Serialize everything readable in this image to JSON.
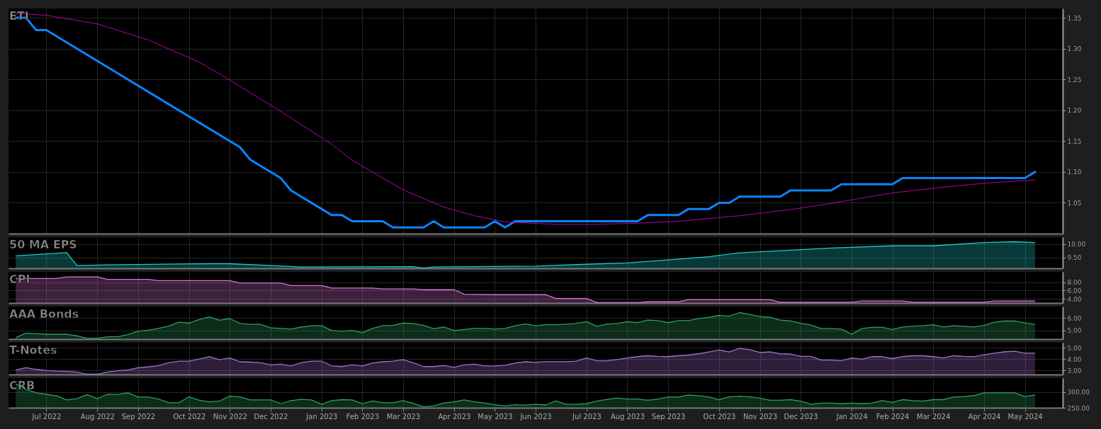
{
  "chart_data": [
    {
      "type": "line",
      "title": "ETI",
      "xlim": [
        "2022-06-05",
        "2024-05-29"
      ],
      "xticks": [
        {
          "value": "2022-07-01",
          "label": null
        },
        {
          "value": "2022-08-05",
          "label": null
        },
        {
          "value": "2022-09-02",
          "label": null
        },
        {
          "value": "2022-10-07",
          "label": null
        },
        {
          "value": "2022-11-04",
          "label": null
        },
        {
          "value": "2022-12-02",
          "label": null
        },
        {
          "value": "2023-01-06",
          "label": null
        },
        {
          "value": "2023-02-03",
          "label": null
        },
        {
          "value": "2023-03-03",
          "label": null
        },
        {
          "value": "2023-04-07",
          "label": null
        },
        {
          "value": "2023-05-05",
          "label": null
        },
        {
          "value": "2023-06-02",
          "label": null
        },
        {
          "value": "2023-07-07",
          "label": null
        },
        {
          "value": "2023-08-04",
          "label": null
        },
        {
          "value": "2023-09-01",
          "label": null
        },
        {
          "value": "2023-10-06",
          "label": null
        },
        {
          "value": "2023-11-03",
          "label": null
        },
        {
          "value": "2023-12-01",
          "label": null
        },
        {
          "value": "2024-01-05",
          "label": null
        },
        {
          "value": "2024-02-02",
          "label": null
        },
        {
          "value": "2024-03-01",
          "label": null
        },
        {
          "value": "2024-04-05",
          "label": null
        },
        {
          "value": "2024-05-03",
          "label": null
        }
      ],
      "ylim": [
        1.0,
        1.365
      ],
      "yticks": [
        1.05,
        {
          "value": 1.1,
          "label": "1.10"
        },
        1.15,
        {
          "value": 1.2,
          "label": "1.20"
        },
        1.25,
        {
          "value": 1.3,
          "label": "1.30"
        },
        1.35
      ],
      "grid": true,
      "tick_labels": "y",
      "series": [
        {
          "color": "#0a84ff",
          "x": [
            "2022-06-10",
            "2022-06-17",
            "2022-06-24",
            "2022-07-01",
            "2022-11-11",
            "2022-11-18",
            "2022-12-09",
            "2022-12-16",
            "2023-01-13",
            "2023-01-20",
            "2023-01-27",
            "2023-02-17",
            "2023-02-24",
            "2023-03-17",
            "2023-03-24",
            "2023-03-31",
            "2023-04-28",
            "2023-05-05",
            "2023-05-12",
            "2023-05-19",
            "2023-08-11",
            "2023-08-18",
            "2023-09-08",
            "2023-09-15",
            "2023-09-29",
            "2023-10-06",
            "2023-10-13",
            "2023-10-20",
            "2023-11-17",
            "2023-11-24",
            "2023-12-22",
            "2023-12-29",
            "2024-02-02",
            "2024-02-09",
            "2024-05-03",
            "2024-05-10"
          ],
          "values": [
            1.35,
            1.35,
            1.33,
            1.33,
            1.14,
            1.12,
            1.09,
            1.07,
            1.03,
            1.03,
            1.02,
            1.02,
            1.01,
            1.01,
            1.02,
            1.01,
            1.01,
            1.02,
            1.01,
            1.02,
            1.02,
            1.03,
            1.03,
            1.04,
            1.04,
            1.05,
            1.05,
            1.06,
            1.06,
            1.07,
            1.07,
            1.08,
            1.08,
            1.09,
            1.09,
            1.1
          ]
        },
        {
          "color": "#b000b0",
          "x": [
            "2022-06-10",
            "2022-07-01",
            "2022-08-05",
            "2022-09-09",
            "2022-10-14",
            "2022-11-04",
            "2022-12-09",
            "2023-01-13",
            "2023-01-27",
            "2023-03-03",
            "2023-03-31",
            "2023-04-21",
            "2023-05-12",
            "2023-06-16",
            "2023-07-14",
            "2023-08-11",
            "2023-09-08",
            "2023-10-20",
            "2023-11-24",
            "2023-12-22",
            "2024-02-02",
            "2024-03-15",
            "2024-04-12",
            "2024-05-10"
          ],
          "values": [
            1.357,
            1.354,
            1.34,
            1.314,
            1.278,
            1.249,
            1.198,
            1.145,
            1.119,
            1.071,
            1.043,
            1.029,
            1.019,
            1.015,
            1.015,
            1.017,
            1.02,
            1.029,
            1.039,
            1.049,
            1.066,
            1.077,
            1.083,
            1.087
          ]
        }
      ]
    },
    {
      "type": "area",
      "title": "50 MA EPS",
      "xlim": [
        "2022-06-05",
        "2024-05-29"
      ],
      "xticks": [
        {
          "value": "2022-07-01",
          "label": null
        },
        {
          "value": "2022-08-05",
          "label": null
        },
        {
          "value": "2022-09-02",
          "label": null
        },
        {
          "value": "2022-10-07",
          "label": null
        },
        {
          "value": "2022-11-04",
          "label": null
        },
        {
          "value": "2022-12-02",
          "label": null
        },
        {
          "value": "2023-01-06",
          "label": null
        },
        {
          "value": "2023-02-03",
          "label": null
        },
        {
          "value": "2023-03-03",
          "label": null
        },
        {
          "value": "2023-04-07",
          "label": null
        },
        {
          "value": "2023-05-05",
          "label": null
        },
        {
          "value": "2023-06-02",
          "label": null
        },
        {
          "value": "2023-07-07",
          "label": null
        },
        {
          "value": "2023-08-04",
          "label": null
        },
        {
          "value": "2023-09-01",
          "label": null
        },
        {
          "value": "2023-10-06",
          "label": null
        },
        {
          "value": "2023-11-03",
          "label": null
        },
        {
          "value": "2023-12-01",
          "label": null
        },
        {
          "value": "2024-01-05",
          "label": null
        },
        {
          "value": "2024-02-02",
          "label": null
        },
        {
          "value": "2024-03-01",
          "label": null
        },
        {
          "value": "2024-04-05",
          "label": null
        },
        {
          "value": "2024-05-03",
          "label": null
        }
      ],
      "ylim": [
        9.1,
        10.25
      ],
      "yticks": [
        {
          "value": 9.5,
          "label": "9.50"
        },
        {
          "value": 10,
          "label": "10.00"
        }
      ],
      "grid": true,
      "tick_labels": "y",
      "series": [
        {
          "color": "#1fc8c8",
          "x": [
            "2022-06-10",
            "2022-07-15",
            "2022-07-22",
            "2022-08-12",
            "2022-10-21",
            "2022-11-04",
            "2022-12-23",
            "2023-03-10",
            "2023-03-17",
            "2023-03-24",
            "2023-06-02",
            "2023-07-07",
            "2023-08-04",
            "2023-09-01",
            "2023-09-29",
            "2023-10-20",
            "2023-11-24",
            "2023-12-22",
            "2024-02-02",
            "2024-03-01",
            "2024-04-05",
            "2024-04-26",
            "2024-05-10"
          ],
          "values": [
            9.56,
            9.68,
            9.2,
            9.23,
            9.27,
            9.27,
            9.15,
            9.16,
            9.11,
            9.15,
            9.18,
            9.25,
            9.3,
            9.41,
            9.53,
            9.67,
            9.77,
            9.85,
            9.93,
            9.93,
            10.05,
            10.08,
            10.05
          ]
        }
      ]
    },
    {
      "type": "area",
      "title": "CPI",
      "xlim": [
        "2022-06-05",
        "2024-05-29"
      ],
      "xticks": [
        {
          "value": "2022-07-01",
          "label": null
        },
        {
          "value": "2022-08-05",
          "label": null
        },
        {
          "value": "2022-09-02",
          "label": null
        },
        {
          "value": "2022-10-07",
          "label": null
        },
        {
          "value": "2022-11-04",
          "label": null
        },
        {
          "value": "2022-12-02",
          "label": null
        },
        {
          "value": "2023-01-06",
          "label": null
        },
        {
          "value": "2023-02-03",
          "label": null
        },
        {
          "value": "2023-03-03",
          "label": null
        },
        {
          "value": "2023-04-07",
          "label": null
        },
        {
          "value": "2023-05-05",
          "label": null
        },
        {
          "value": "2023-06-02",
          "label": null
        },
        {
          "value": "2023-07-07",
          "label": null
        },
        {
          "value": "2023-08-04",
          "label": null
        },
        {
          "value": "2023-09-01",
          "label": null
        },
        {
          "value": "2023-10-06",
          "label": null
        },
        {
          "value": "2023-11-03",
          "label": null
        },
        {
          "value": "2023-12-01",
          "label": null
        },
        {
          "value": "2024-01-05",
          "label": null
        },
        {
          "value": "2024-02-02",
          "label": null
        },
        {
          "value": "2024-03-01",
          "label": null
        },
        {
          "value": "2024-04-05",
          "label": null
        },
        {
          "value": "2024-05-03",
          "label": null
        }
      ],
      "ylim": [
        3.0,
        10.5
      ],
      "yticks": [
        {
          "value": 4,
          "label": "4.00"
        },
        {
          "value": 6,
          "label": "6.00"
        },
        {
          "value": 8,
          "label": "8.00"
        }
      ],
      "grid": true,
      "tick_labels": "y",
      "series": [
        {
          "color": "#d873d8",
          "x": [
            "2022-06-10",
            "2022-07-08",
            "2022-07-15",
            "2022-08-05",
            "2022-08-12",
            "2022-09-09",
            "2022-09-16",
            "2022-11-04",
            "2022-11-11",
            "2022-12-09",
            "2022-12-16",
            "2023-01-06",
            "2023-01-13",
            "2023-02-10",
            "2023-02-17",
            "2023-03-10",
            "2023-03-17",
            "2023-04-07",
            "2023-04-14",
            "2023-05-05",
            "2023-06-09",
            "2023-06-16",
            "2023-07-07",
            "2023-07-14",
            "2023-08-11",
            "2023-08-18",
            "2023-09-08",
            "2023-09-15",
            "2023-11-10",
            "2023-11-17",
            "2024-01-05",
            "2024-01-12",
            "2024-02-09",
            "2024-02-16",
            "2024-04-05",
            "2024-04-12",
            "2024-05-10"
          ],
          "values": [
            8.9,
            8.9,
            9.3,
            9.3,
            8.7,
            8.7,
            8.4,
            8.4,
            7.8,
            7.8,
            7.2,
            7.2,
            6.6,
            6.6,
            6.4,
            6.4,
            6.2,
            6.2,
            5.1,
            5.0,
            5.0,
            4.1,
            4.1,
            3.1,
            3.1,
            3.3,
            3.3,
            3.8,
            3.8,
            3.2,
            3.2,
            3.5,
            3.5,
            3.2,
            3.2,
            3.5,
            3.5
          ]
        }
      ]
    },
    {
      "type": "area",
      "title": "AAA Bonds",
      "xlim": [
        "2022-06-05",
        "2024-05-29"
      ],
      "xticks": [
        {
          "value": "2022-07-01",
          "label": null
        },
        {
          "value": "2022-08-05",
          "label": null
        },
        {
          "value": "2022-09-02",
          "label": null
        },
        {
          "value": "2022-10-07",
          "label": null
        },
        {
          "value": "2022-11-04",
          "label": null
        },
        {
          "value": "2022-12-02",
          "label": null
        },
        {
          "value": "2023-01-06",
          "label": null
        },
        {
          "value": "2023-02-03",
          "label": null
        },
        {
          "value": "2023-03-03",
          "label": null
        },
        {
          "value": "2023-04-07",
          "label": null
        },
        {
          "value": "2023-05-05",
          "label": null
        },
        {
          "value": "2023-06-02",
          "label": null
        },
        {
          "value": "2023-07-07",
          "label": null
        },
        {
          "value": "2023-08-04",
          "label": null
        },
        {
          "value": "2023-09-01",
          "label": null
        },
        {
          "value": "2023-10-06",
          "label": null
        },
        {
          "value": "2023-11-03",
          "label": null
        },
        {
          "value": "2023-12-01",
          "label": null
        },
        {
          "value": "2024-01-05",
          "label": null
        },
        {
          "value": "2024-02-02",
          "label": null
        },
        {
          "value": "2024-03-01",
          "label": null
        },
        {
          "value": "2024-04-05",
          "label": null
        },
        {
          "value": "2024-05-03",
          "label": null
        }
      ],
      "ylim": [
        4.3,
        6.95
      ],
      "yticks": [
        {
          "value": 5,
          "label": "5.00"
        },
        {
          "value": 6,
          "label": "6.00"
        }
      ],
      "grid": true,
      "tick_labels": "y",
      "x": [
        "2022-06-10",
        "2022-06-17",
        "2022-06-24",
        "2022-07-01",
        "2022-07-08",
        "2022-07-15",
        "2022-07-22",
        "2022-07-29",
        "2022-08-05",
        "2022-08-12",
        "2022-08-19",
        "2022-08-26",
        "2022-09-02",
        "2022-09-09",
        "2022-09-16",
        "2022-09-23",
        "2022-09-30",
        "2022-10-07",
        "2022-10-14",
        "2022-10-21",
        "2022-10-28",
        "2022-11-04",
        "2022-11-11",
        "2022-11-18",
        "2022-11-25",
        "2022-12-02",
        "2022-12-09",
        "2022-12-16",
        "2022-12-23",
        "2022-12-30",
        "2023-01-06",
        "2023-01-13",
        "2023-01-20",
        "2023-01-27",
        "2023-02-03",
        "2023-02-10",
        "2023-02-17",
        "2023-02-24",
        "2023-03-03",
        "2023-03-10",
        "2023-03-17",
        "2023-03-24",
        "2023-03-31",
        "2023-04-07",
        "2023-04-14",
        "2023-04-21",
        "2023-04-28",
        "2023-05-05",
        "2023-05-12",
        "2023-05-19",
        "2023-05-26",
        "2023-06-02",
        "2023-06-09",
        "2023-06-16",
        "2023-06-23",
        "2023-06-30",
        "2023-07-07",
        "2023-07-14",
        "2023-07-21",
        "2023-07-28",
        "2023-08-04",
        "2023-08-11",
        "2023-08-18",
        "2023-08-25",
        "2023-09-01",
        "2023-09-08",
        "2023-09-15",
        "2023-09-22",
        "2023-09-29",
        "2023-10-06",
        "2023-10-13",
        "2023-10-20",
        "2023-10-27",
        "2023-11-03",
        "2023-11-10",
        "2023-11-17",
        "2023-11-24",
        "2023-12-01",
        "2023-12-08",
        "2023-12-15",
        "2023-12-22",
        "2023-12-29",
        "2024-01-05",
        "2024-01-12",
        "2024-01-19",
        "2024-01-26",
        "2024-02-02",
        "2024-02-09",
        "2024-02-16",
        "2024-02-23",
        "2024-03-01",
        "2024-03-08",
        "2024-03-15",
        "2024-03-22",
        "2024-03-29",
        "2024-04-05",
        "2024-04-12",
        "2024-04-19",
        "2024-04-26",
        "2024-05-03",
        "2024-05-10"
      ],
      "series": [
        {
          "color": "#2e9e5e",
          "values": [
            4.42,
            4.78,
            4.74,
            4.69,
            4.69,
            4.69,
            4.56,
            4.36,
            4.36,
            4.5,
            4.5,
            4.67,
            4.94,
            5.03,
            5.17,
            5.36,
            5.67,
            5.61,
            5.89,
            6.11,
            5.83,
            5.97,
            5.58,
            5.5,
            5.5,
            5.22,
            5.17,
            5.11,
            5.28,
            5.39,
            5.39,
            5.0,
            4.94,
            5.0,
            4.83,
            5.17,
            5.39,
            5.42,
            5.61,
            5.56,
            5.42,
            5.14,
            5.28,
            5.0,
            5.08,
            5.17,
            5.17,
            5.11,
            5.17,
            5.39,
            5.53,
            5.39,
            5.47,
            5.47,
            5.52,
            5.57,
            5.72,
            5.34,
            5.52,
            5.57,
            5.72,
            5.64,
            5.85,
            5.8,
            5.64,
            5.8,
            5.8,
            5.98,
            6.08,
            6.23,
            6.16,
            6.46,
            6.31,
            6.13,
            6.08,
            5.85,
            5.77,
            5.59,
            5.44,
            5.16,
            5.16,
            5.11,
            4.7,
            5.16,
            5.26,
            5.26,
            5.08,
            5.29,
            5.34,
            5.39,
            5.47,
            5.29,
            5.39,
            5.34,
            5.29,
            5.42,
            5.67,
            5.77,
            5.77,
            5.62,
            5.49
          ]
        }
      ]
    },
    {
      "type": "area",
      "title": "T-Notes",
      "xlim": [
        "2022-06-05",
        "2024-05-29"
      ],
      "xticks": [
        {
          "value": "2022-07-01",
          "label": null
        },
        {
          "value": "2022-08-05",
          "label": null
        },
        {
          "value": "2022-09-02",
          "label": null
        },
        {
          "value": "2022-10-07",
          "label": null
        },
        {
          "value": "2022-11-04",
          "label": null
        },
        {
          "value": "2022-12-02",
          "label": null
        },
        {
          "value": "2023-01-06",
          "label": null
        },
        {
          "value": "2023-02-03",
          "label": null
        },
        {
          "value": "2023-03-03",
          "label": null
        },
        {
          "value": "2023-04-07",
          "label": null
        },
        {
          "value": "2023-05-05",
          "label": null
        },
        {
          "value": "2023-06-02",
          "label": null
        },
        {
          "value": "2023-07-07",
          "label": null
        },
        {
          "value": "2023-08-04",
          "label": null
        },
        {
          "value": "2023-09-01",
          "label": null
        },
        {
          "value": "2023-10-06",
          "label": null
        },
        {
          "value": "2023-11-03",
          "label": null
        },
        {
          "value": "2023-12-01",
          "label": null
        },
        {
          "value": "2024-01-05",
          "label": null
        },
        {
          "value": "2024-02-02",
          "label": null
        },
        {
          "value": "2024-03-01",
          "label": null
        },
        {
          "value": "2024-04-05",
          "label": null
        },
        {
          "value": "2024-05-03",
          "label": null
        }
      ],
      "ylim": [
        2.65,
        5.45
      ],
      "yticks": [
        {
          "value": 3,
          "label": "3.00"
        },
        {
          "value": 4,
          "label": "4.00"
        },
        {
          "value": 5,
          "label": "5.00"
        }
      ],
      "grid": true,
      "tick_labels": "y",
      "x": [
        "2022-06-10",
        "2022-06-17",
        "2022-06-24",
        "2022-07-01",
        "2022-07-08",
        "2022-07-15",
        "2022-07-22",
        "2022-07-29",
        "2022-08-05",
        "2022-08-12",
        "2022-08-19",
        "2022-08-26",
        "2022-09-02",
        "2022-09-09",
        "2022-09-16",
        "2022-09-23",
        "2022-09-30",
        "2022-10-07",
        "2022-10-14",
        "2022-10-21",
        "2022-10-28",
        "2022-11-04",
        "2022-11-11",
        "2022-11-18",
        "2022-11-25",
        "2022-12-02",
        "2022-12-09",
        "2022-12-16",
        "2022-12-23",
        "2022-12-30",
        "2023-01-06",
        "2023-01-13",
        "2023-01-20",
        "2023-01-27",
        "2023-02-03",
        "2023-02-10",
        "2023-02-17",
        "2023-02-24",
        "2023-03-03",
        "2023-03-10",
        "2023-03-17",
        "2023-03-24",
        "2023-03-31",
        "2023-04-07",
        "2023-04-14",
        "2023-04-21",
        "2023-04-28",
        "2023-05-05",
        "2023-05-12",
        "2023-05-19",
        "2023-05-26",
        "2023-06-02",
        "2023-06-09",
        "2023-06-16",
        "2023-06-23",
        "2023-06-30",
        "2023-07-07",
        "2023-07-14",
        "2023-07-21",
        "2023-07-28",
        "2023-08-04",
        "2023-08-11",
        "2023-08-18",
        "2023-08-25",
        "2023-09-01",
        "2023-09-08",
        "2023-09-15",
        "2023-09-22",
        "2023-09-29",
        "2023-10-06",
        "2023-10-13",
        "2023-10-20",
        "2023-10-27",
        "2023-11-03",
        "2023-11-10",
        "2023-11-17",
        "2023-11-24",
        "2023-12-01",
        "2023-12-08",
        "2023-12-15",
        "2023-12-22",
        "2023-12-29",
        "2024-01-05",
        "2024-01-12",
        "2024-01-19",
        "2024-01-26",
        "2024-02-02",
        "2024-02-09",
        "2024-02-16",
        "2024-02-23",
        "2024-03-01",
        "2024-03-08",
        "2024-03-15",
        "2024-03-22",
        "2024-03-29",
        "2024-04-05",
        "2024-04-12",
        "2024-04-19",
        "2024-04-26",
        "2024-05-03",
        "2024-05-10"
      ],
      "series": [
        {
          "color": "#a070d0",
          "values": [
            3.04,
            3.25,
            3.1,
            3.0,
            2.95,
            2.92,
            2.86,
            2.68,
            2.68,
            2.86,
            2.98,
            3.04,
            3.25,
            3.32,
            3.44,
            3.68,
            3.83,
            3.83,
            4.01,
            4.22,
            3.95,
            4.1,
            3.77,
            3.74,
            3.68,
            3.5,
            3.56,
            3.41,
            3.68,
            3.83,
            3.83,
            3.41,
            3.35,
            3.5,
            3.41,
            3.65,
            3.77,
            3.83,
            3.95,
            3.68,
            3.35,
            3.35,
            3.44,
            3.28,
            3.5,
            3.56,
            3.41,
            3.41,
            3.47,
            3.65,
            3.77,
            3.72,
            3.78,
            3.78,
            3.78,
            3.83,
            4.11,
            3.86,
            3.86,
            3.97,
            4.11,
            4.22,
            4.3,
            4.25,
            4.22,
            4.3,
            4.36,
            4.47,
            4.64,
            4.81,
            4.64,
            4.95,
            4.84,
            4.58,
            4.64,
            4.47,
            4.44,
            4.25,
            4.25,
            3.92,
            3.92,
            3.86,
            4.11,
            4.0,
            4.22,
            4.22,
            4.05,
            4.22,
            4.3,
            4.3,
            4.22,
            4.11,
            4.3,
            4.25,
            4.22,
            4.39,
            4.53,
            4.64,
            4.7,
            4.53,
            4.53
          ]
        }
      ]
    },
    {
      "type": "area",
      "title": "CRB",
      "xlim": [
        "2022-06-05",
        "2024-05-29"
      ],
      "xticks": [
        {
          "value": "2022-07-01",
          "label": "Jul 2022"
        },
        {
          "value": "2022-08-05",
          "label": "Aug 2022"
        },
        {
          "value": "2022-09-02",
          "label": "Sep 2022"
        },
        {
          "value": "2022-10-07",
          "label": "Oct 2022"
        },
        {
          "value": "2022-11-04",
          "label": "Nov 2022"
        },
        {
          "value": "2022-12-02",
          "label": "Dec 2022"
        },
        {
          "value": "2023-01-06",
          "label": "Jan 2023"
        },
        {
          "value": "2023-02-03",
          "label": "Feb 2023"
        },
        {
          "value": "2023-03-03",
          "label": "Mar 2023"
        },
        {
          "value": "2023-04-07",
          "label": "Apr 2023"
        },
        {
          "value": "2023-05-05",
          "label": "May 2023"
        },
        {
          "value": "2023-06-02",
          "label": "Jun 2023"
        },
        {
          "value": "2023-07-07",
          "label": "Jul 2023"
        },
        {
          "value": "2023-08-04",
          "label": "Aug 2023"
        },
        {
          "value": "2023-09-01",
          "label": "Sep 2023"
        },
        {
          "value": "2023-10-06",
          "label": "Oct 2023"
        },
        {
          "value": "2023-11-03",
          "label": "Nov 2023"
        },
        {
          "value": "2023-12-01",
          "label": "Dec 2023"
        },
        {
          "value": "2024-01-05",
          "label": "Jan 2024"
        },
        {
          "value": "2024-02-02",
          "label": "Feb 2024"
        },
        {
          "value": "2024-03-01",
          "label": "Mar 2024"
        },
        {
          "value": "2024-04-05",
          "label": "Apr 2024"
        },
        {
          "value": "2024-05-03",
          "label": "May 2024"
        }
      ],
      "ylim": [
        250,
        345
      ],
      "yticks": [
        {
          "value": 250,
          "label": "250.00"
        },
        {
          "value": 300,
          "label": "300.00"
        }
      ],
      "grid": true,
      "x": [
        "2022-06-10",
        "2022-06-17",
        "2022-06-24",
        "2022-07-01",
        "2022-07-08",
        "2022-07-15",
        "2022-07-22",
        "2022-07-29",
        "2022-08-05",
        "2022-08-12",
        "2022-08-19",
        "2022-08-26",
        "2022-09-02",
        "2022-09-09",
        "2022-09-16",
        "2022-09-23",
        "2022-09-30",
        "2022-10-07",
        "2022-10-14",
        "2022-10-21",
        "2022-10-28",
        "2022-11-04",
        "2022-11-11",
        "2022-11-18",
        "2022-11-25",
        "2022-12-02",
        "2022-12-09",
        "2022-12-16",
        "2022-12-23",
        "2022-12-30",
        "2023-01-06",
        "2023-01-13",
        "2023-01-20",
        "2023-01-27",
        "2023-02-03",
        "2023-02-10",
        "2023-02-17",
        "2023-02-24",
        "2023-03-03",
        "2023-03-10",
        "2023-03-17",
        "2023-03-24",
        "2023-03-31",
        "2023-04-07",
        "2023-04-14",
        "2023-04-21",
        "2023-04-28",
        "2023-05-05",
        "2023-05-12",
        "2023-05-19",
        "2023-05-26",
        "2023-06-02",
        "2023-06-09",
        "2023-06-16",
        "2023-06-23",
        "2023-06-30",
        "2023-07-07",
        "2023-07-14",
        "2023-07-21",
        "2023-07-28",
        "2023-08-04",
        "2023-08-11",
        "2023-08-18",
        "2023-08-25",
        "2023-09-01",
        "2023-09-08",
        "2023-09-15",
        "2023-09-22",
        "2023-09-29",
        "2023-10-06",
        "2023-10-13",
        "2023-10-20",
        "2023-10-27",
        "2023-11-03",
        "2023-11-10",
        "2023-11-17",
        "2023-11-24",
        "2023-12-01",
        "2023-12-08",
        "2023-12-15",
        "2023-12-22",
        "2023-12-29",
        "2024-01-05",
        "2024-01-12",
        "2024-01-19",
        "2024-01-26",
        "2024-02-02",
        "2024-02-09",
        "2024-02-16",
        "2024-02-23",
        "2024-03-01",
        "2024-03-08",
        "2024-03-15",
        "2024-03-22",
        "2024-03-29",
        "2024-04-05",
        "2024-04-12",
        "2024-04-19",
        "2024-04-26",
        "2024-05-03",
        "2024-05-10"
      ],
      "series": [
        {
          "color": "#2e9e5e",
          "values": [
            326,
            309,
            298,
            293,
            288,
            275,
            279,
            292,
            279,
            293,
            292,
            298,
            284,
            284,
            278,
            266,
            266,
            285,
            274,
            269,
            272,
            287,
            285,
            275,
            275,
            275,
            263,
            273,
            277,
            275,
            261,
            273,
            276,
            275,
            263,
            272,
            266,
            266,
            273,
            264,
            253,
            256,
            265,
            269,
            275,
            269,
            265,
            260,
            256,
            260,
            258,
            261,
            259,
            272,
            261,
            261,
            263,
            271,
            277,
            281,
            278,
            278,
            274,
            278,
            284,
            284,
            291,
            288,
            285,
            276,
            285,
            287,
            285,
            281,
            274,
            274,
            276,
            271,
            261,
            265,
            265,
            263,
            265,
            263,
            265,
            273,
            267,
            276,
            273,
            271,
            276,
            276,
            284,
            286,
            289,
            298,
            298,
            298,
            298,
            286,
            291
          ]
        }
      ]
    }
  ]
}
